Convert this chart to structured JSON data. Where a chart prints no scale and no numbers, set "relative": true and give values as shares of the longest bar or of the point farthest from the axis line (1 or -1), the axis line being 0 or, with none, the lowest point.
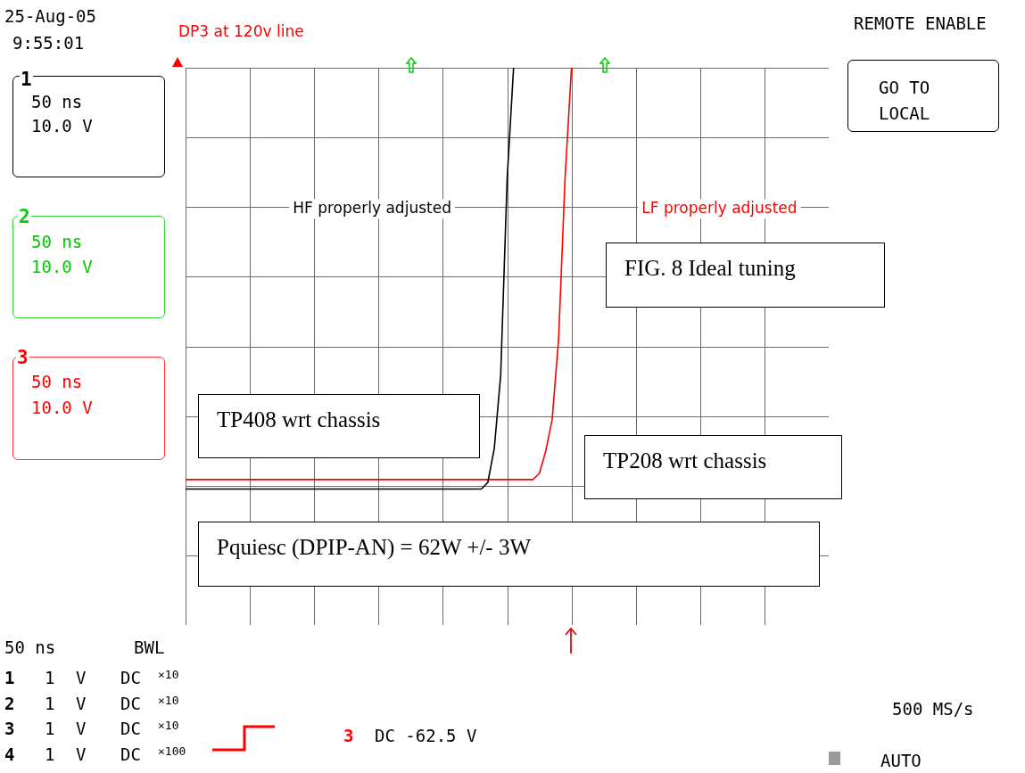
{
  "chart_data": {
    "type": "line",
    "relative": true,
    "grid": true,
    "categories": [
      null,
      null,
      null,
      null,
      null,
      null,
      null,
      null,
      null,
      null,
      null,
      null,
      null,
      null,
      null,
      null,
      null,
      null,
      null,
      null,
      null,
      null,
      null,
      null,
      null,
      null,
      null,
      null,
      null,
      null,
      null,
      null,
      null,
      null,
      null,
      null,
      null,
      null,
      null,
      null,
      null,
      null,
      null,
      null,
      null,
      null,
      null,
      null,
      null,
      null,
      null,
      null,
      null,
      null,
      null,
      null,
      null,
      null,
      null,
      null,
      null,
      null,
      null,
      null,
      null,
      null,
      null,
      null,
      null,
      null,
      null,
      null,
      null,
      null,
      null,
      null,
      null,
      null,
      null,
      null,
      null,
      null,
      null,
      null,
      null,
      null,
      null,
      null,
      null,
      null,
      null,
      null,
      null,
      null,
      null,
      null,
      null,
      null,
      null,
      null,
      null
    ],
    "series": [
      {
        "name": "HF properly adjusted",
        "color": "#000000",
        "values": [
          0.244,
          0.244,
          0.244,
          0.244,
          0.244,
          0.244,
          0.244,
          0.244,
          0.244,
          0.244,
          0.244,
          0.244,
          0.244,
          0.244,
          0.244,
          0.244,
          0.244,
          0.244,
          0.244,
          0.244,
          0.244,
          0.244,
          0.244,
          0.244,
          0.244,
          0.244,
          0.244,
          0.244,
          0.244,
          0.244,
          0.244,
          0.244,
          0.244,
          0.244,
          0.244,
          0.244,
          0.244,
          0.244,
          0.244,
          0.244,
          0.244,
          0.244,
          0.244,
          0.244,
          0.244,
          0.244,
          0.244,
          0.256,
          0.317,
          0.449,
          0.801,
          1,
          null,
          null,
          null,
          null,
          null,
          null,
          null,
          null,
          null,
          null,
          null,
          null,
          null,
          null,
          null,
          null,
          null,
          null,
          null,
          null,
          null,
          null,
          null,
          null,
          null,
          null,
          null,
          null,
          null,
          null,
          null,
          null,
          null,
          null,
          null,
          null,
          null,
          null,
          null,
          null,
          null,
          null,
          null,
          null,
          null,
          null,
          null,
          null,
          null
        ]
      },
      {
        "name": "LF properly adjusted",
        "color": "#ff0000",
        "values": [
          0.261,
          0.261,
          0.261,
          0.261,
          0.261,
          0.261,
          0.261,
          0.261,
          0.261,
          0.261,
          0.261,
          0.261,
          0.261,
          0.261,
          0.261,
          0.261,
          0.261,
          0.261,
          0.261,
          0.261,
          0.261,
          0.261,
          0.261,
          0.261,
          0.261,
          0.261,
          0.261,
          0.261,
          0.261,
          0.261,
          0.261,
          0.261,
          0.261,
          0.261,
          0.261,
          0.261,
          0.261,
          0.261,
          0.261,
          0.261,
          0.261,
          0.261,
          0.261,
          0.261,
          0.261,
          0.261,
          0.261,
          0.261,
          0.261,
          0.261,
          0.261,
          0.261,
          0.261,
          0.261,
          0.261,
          0.272,
          0.312,
          0.369,
          0.513,
          0.801,
          1,
          null,
          null,
          null,
          null,
          null,
          null,
          null,
          null,
          null,
          null,
          null,
          null,
          null,
          null,
          null,
          null,
          null,
          null,
          null,
          null,
          null,
          null,
          null,
          null,
          null,
          null,
          null,
          null,
          null,
          null,
          null,
          null,
          null,
          null,
          null,
          null,
          null,
          null,
          null,
          null
        ]
      }
    ],
    "annotations": [
      "25-Aug-05",
      "9:55:01",
      "DP3 at 120v line",
      "REMOTE ENABLE",
      "GO TO LOCAL",
      "1",
      "50 ns",
      "10.0 V",
      "2",
      "50 ns",
      "10.0 V",
      "3",
      "50 ns",
      "10.0 V",
      "FIG. 8 Ideal tuning",
      "TP408 wrt chassis",
      "TP208 wrt chassis",
      "Pquiesc (DPIP-AN) = 62W +/- 3W",
      "50 ns",
      "BWL",
      "1 1 V DC ×10",
      "2 1 V DC ×10",
      "3 1 V DC ×10",
      "4 1 V DC ×100",
      "3 DC -62.5 V",
      "500 MS/s",
      "AUTO"
    ]
  }
}
